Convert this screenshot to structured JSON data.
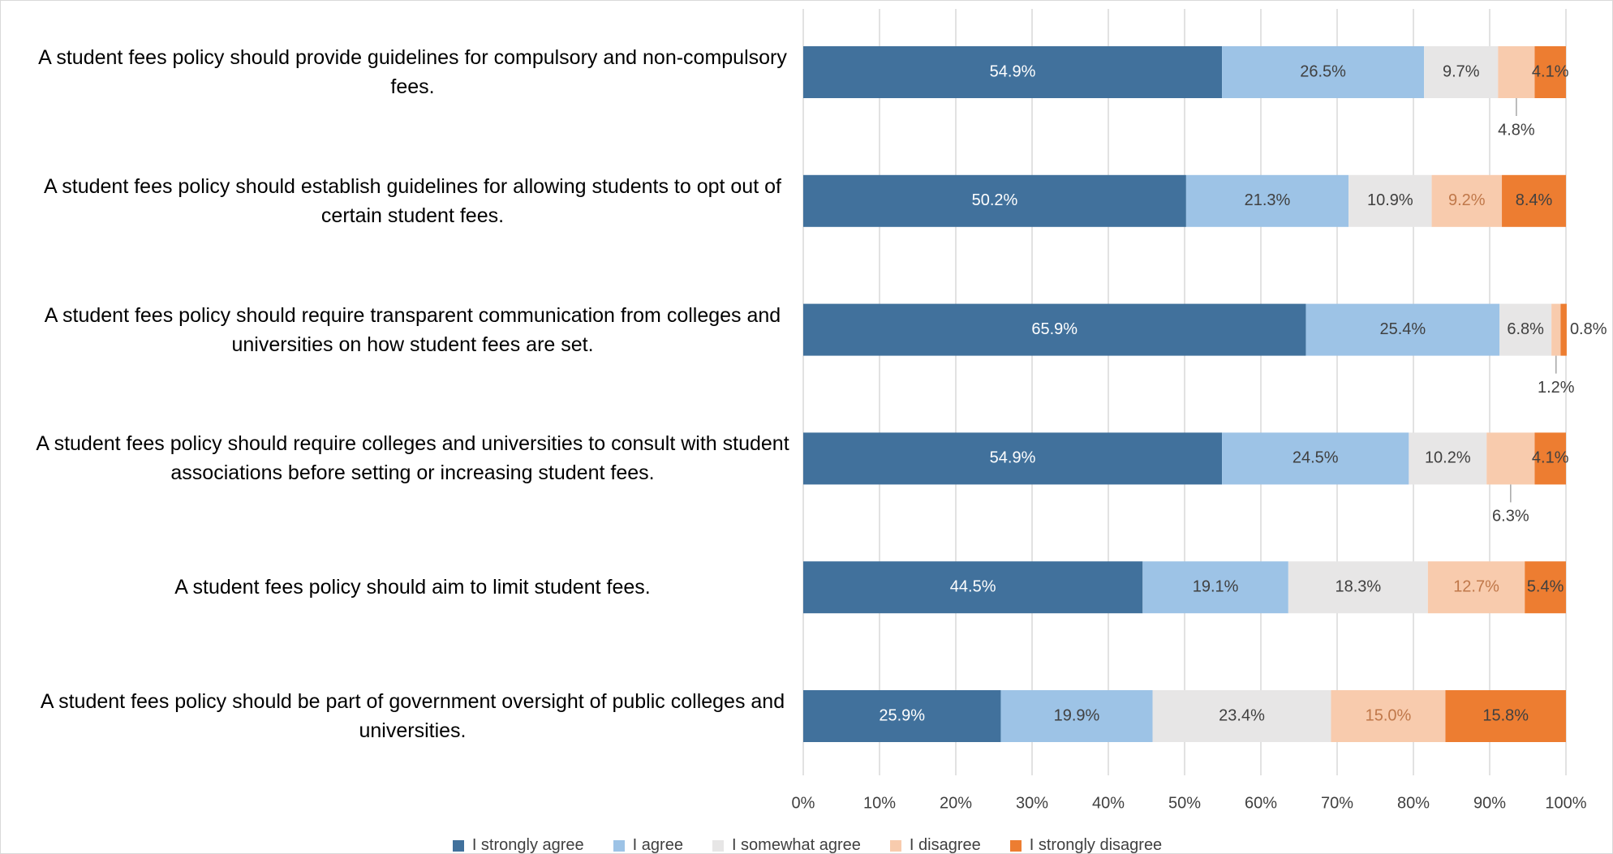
{
  "chart_data": {
    "type": "stacked-bar-horizontal",
    "categories": [
      "A student fees policy should provide guidelines for compulsory and non-compulsory fees.",
      "A student fees policy should establish guidelines for allowing students to opt out of certain student fees.",
      "A student fees policy should require transparent communication from colleges and universities on how student fees are set.",
      "A student fees policy should require colleges and universities to consult with student associations before setting or increasing student fees.",
      "A student fees policy should aim to limit student fees.",
      "A student fees policy should be part of government oversight of public colleges and universities."
    ],
    "series": [
      {
        "name": "I strongly agree",
        "color": "#41719c",
        "values": [
          54.9,
          50.2,
          65.9,
          54.9,
          44.5,
          25.9
        ],
        "value_labels": [
          "54.9%",
          "50.2%",
          "65.9%",
          "54.9%",
          "44.5%",
          "25.9%"
        ]
      },
      {
        "name": "I agree",
        "color": "#9dc3e6",
        "values": [
          26.5,
          21.3,
          25.4,
          24.5,
          19.1,
          19.9
        ],
        "value_labels": [
          "26.5%",
          "21.3%",
          "25.4%",
          "24.5%",
          "19.1%",
          "19.9%"
        ]
      },
      {
        "name": "I somewhat agree",
        "color": "#e7e6e6",
        "values": [
          9.7,
          10.9,
          6.8,
          10.2,
          18.3,
          23.4
        ],
        "value_labels": [
          "9.7%",
          "10.9%",
          "6.8%",
          "10.2%",
          "18.3%",
          "23.4%"
        ]
      },
      {
        "name": "I disagree",
        "color": "#f8cbad",
        "values": [
          4.8,
          9.2,
          1.2,
          6.3,
          12.7,
          15.0
        ],
        "value_labels": [
          "4.8%",
          "9.2%",
          "1.2%",
          "6.3%",
          "12.7%",
          "15.0%"
        ]
      },
      {
        "name": "I strongly disagree",
        "color": "#ed7d31",
        "values": [
          4.1,
          8.4,
          0.8,
          4.1,
          5.4,
          15.8
        ],
        "value_labels": [
          "4.1%",
          "8.4%",
          "0.8%",
          "4.1%",
          "5.4%",
          "15.8%"
        ]
      }
    ],
    "xlim": [
      0,
      100
    ],
    "xticks": [
      {
        "value": 0,
        "label": "0%"
      },
      {
        "value": 10,
        "label": "10%"
      },
      {
        "value": 20,
        "label": "20%"
      },
      {
        "value": 30,
        "label": "30%"
      },
      {
        "value": 40,
        "label": "40%"
      },
      {
        "value": 50,
        "label": "50%"
      },
      {
        "value": 60,
        "label": "60%"
      },
      {
        "value": 70,
        "label": "70%"
      },
      {
        "value": 80,
        "label": "80%"
      },
      {
        "value": 90,
        "label": "90%"
      },
      {
        "value": 100,
        "label": "100%"
      }
    ],
    "grid": true,
    "legend": "bottom"
  }
}
